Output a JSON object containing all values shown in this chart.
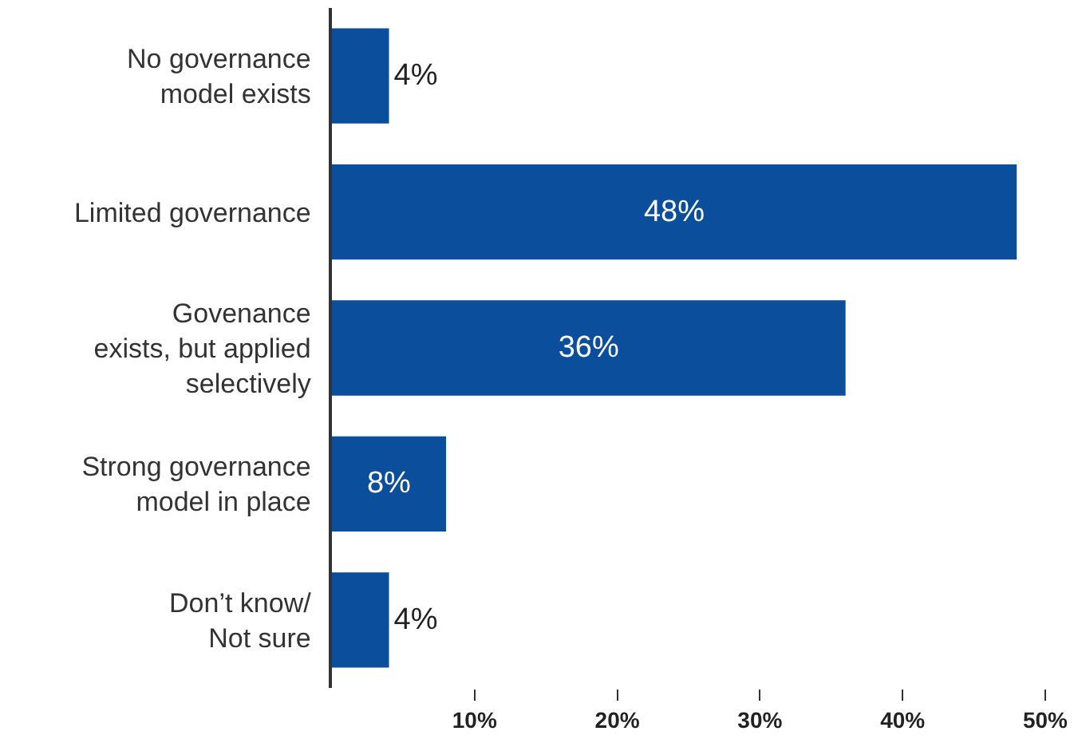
{
  "chart_data": {
    "type": "bar",
    "orientation": "horizontal",
    "categories": [
      "No governance\nmodel exists",
      "Limited governance",
      "Govenance\nexists, but applied\nselectively",
      "Strong governance\nmodel in place",
      "Don’t know/\nNot sure"
    ],
    "values": [
      4,
      48,
      36,
      8,
      4
    ],
    "value_labels": [
      "4%",
      "48%",
      "36%",
      "8%",
      "4%"
    ],
    "color": "#0b4f9c",
    "xlim": [
      0,
      50
    ],
    "xticks": [
      {
        "value": 10,
        "label": "10%"
      },
      {
        "value": 20,
        "label": "20%"
      },
      {
        "value": 30,
        "label": "30%"
      },
      {
        "value": 40,
        "label": "40%"
      },
      {
        "value": 50,
        "label": "50%"
      }
    ],
    "grid": false
  }
}
